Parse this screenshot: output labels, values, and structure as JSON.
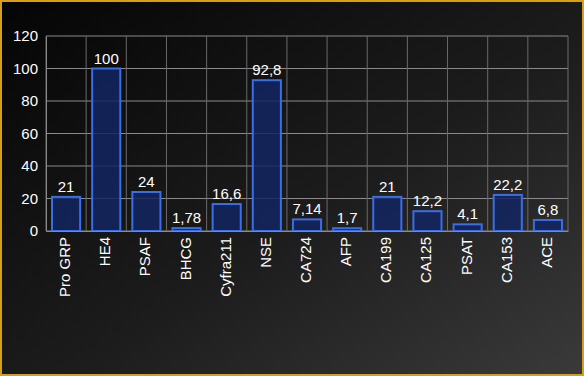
{
  "chart_data": {
    "type": "bar",
    "categories": [
      "Pro GRP",
      "HE4",
      "PSAF",
      "BHCG",
      "Cyfra211",
      "NSE",
      "CA724",
      "AFP",
      "CA199",
      "CA125",
      "PSAT",
      "CA153",
      "ACE"
    ],
    "values": [
      21,
      100,
      24,
      1.78,
      16.6,
      92.8,
      7.14,
      1.7,
      21,
      12.2,
      4.1,
      22.2,
      6.8
    ],
    "value_labels": [
      "21",
      "100",
      "24",
      "1,78",
      "16,6",
      "92,8",
      "7,14",
      "1,7",
      "21",
      "12,2",
      "4,1",
      "22,2",
      "6,8"
    ],
    "color": "#3a6ee8",
    "ylim": [
      0,
      120
    ],
    "yticks": [
      0,
      20,
      40,
      60,
      80,
      100,
      120
    ],
    "grid": true,
    "data_labels": true
  }
}
